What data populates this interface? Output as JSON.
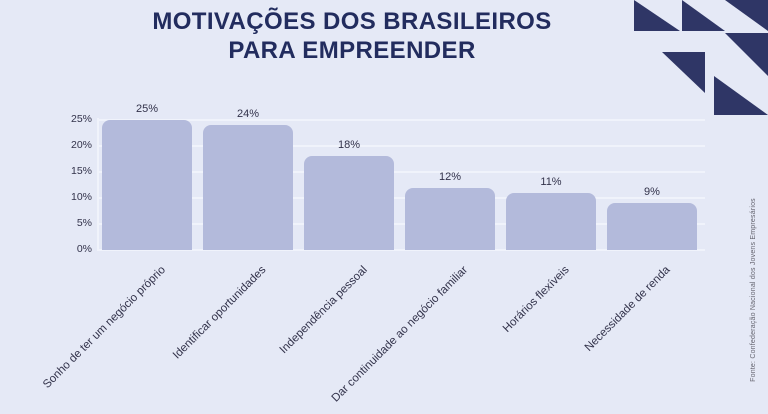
{
  "title": {
    "line1": "MOTIVAÇÕES DOS BRASILEIROS",
    "line2": "PARA EMPREENDER"
  },
  "source": "Fonte: Confederação Nacional dos Jovens Empresários",
  "colors": {
    "background": "#e5e9f6",
    "bar": "#b3badb",
    "navy": "#222c5e",
    "pattern": "#2f3666",
    "grid": "#f0f3fb",
    "label": "#32324a",
    "source_text": "#64646f"
  },
  "chart_data": {
    "type": "bar",
    "title": "MOTIVAÇÕES DOS BRASILEIROS PARA EMPREENDER",
    "categories": [
      "Sonho de ter um negócio próprio",
      "Identificar oportunidades",
      "Independência pessoal",
      "Dar continuidade ao negócio familiar",
      "Horários flexíveis",
      "Necessidade de renda"
    ],
    "values": [
      25,
      24,
      18,
      12,
      11,
      9
    ],
    "value_labels": [
      "25%",
      "24%",
      "18%",
      "12%",
      "11%",
      "9%"
    ],
    "y_ticks": [
      "25%",
      "20%",
      "15%",
      "10%",
      "5%",
      "0%"
    ],
    "ylim": [
      0,
      25
    ],
    "grid": "horizontal",
    "legend": "none",
    "xlabel": "",
    "ylabel": ""
  }
}
